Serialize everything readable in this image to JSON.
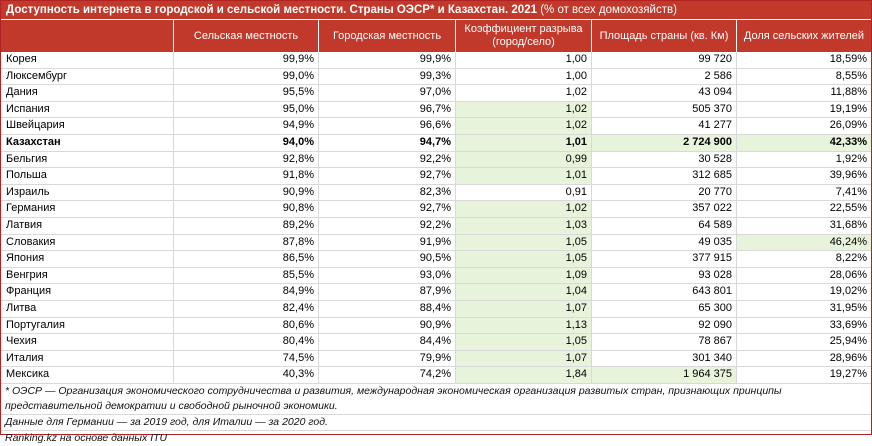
{
  "title_bold": "Доступность интернета в городской и сельской местности. Страны ОЭСР* и Казахстан. 2021",
  "title_rest": " (% от всех домохозяйств)",
  "headers": [
    "",
    "Сельская местность",
    "Городская местность",
    "Коэффициент разрыва (город/село)",
    "Площадь страны (кв. Км)",
    "Доля сельских жителей"
  ],
  "rows": [
    {
      "name": "Корея",
      "rural": "99,9%",
      "urban": "99,9%",
      "ratio": "1,00",
      "area": "99 720",
      "share": "18,59%"
    },
    {
      "name": "Люксембург",
      "rural": "99,0%",
      "urban": "99,3%",
      "ratio": "1,00",
      "area": "2 586",
      "share": "8,55%"
    },
    {
      "name": "Дания",
      "rural": "95,5%",
      "urban": "97,0%",
      "ratio": "1,02",
      "area": "43 094",
      "share": "11,88%"
    },
    {
      "name": "Испания",
      "rural": "95,0%",
      "urban": "96,7%",
      "ratio": "1,02",
      "area": "505 370",
      "share": "19,19%"
    },
    {
      "name": "Швейцария",
      "rural": "94,9%",
      "urban": "96,6%",
      "ratio": "1,02",
      "area": "41 277",
      "share": "26,09%"
    },
    {
      "name": "Казахстан",
      "rural": "94,0%",
      "urban": "94,7%",
      "ratio": "1,01",
      "area": "2 724 900",
      "share": "42,33%"
    },
    {
      "name": "Бельгия",
      "rural": "92,8%",
      "urban": "92,2%",
      "ratio": "0,99",
      "area": "30 528",
      "share": "1,92%"
    },
    {
      "name": "Польша",
      "rural": "91,8%",
      "urban": "92,7%",
      "ratio": "1,01",
      "area": "312 685",
      "share": "39,96%"
    },
    {
      "name": "Израиль",
      "rural": "90,9%",
      "urban": "82,3%",
      "ratio": "0,91",
      "area": "20 770",
      "share": "7,41%"
    },
    {
      "name": "Германия",
      "rural": "90,8%",
      "urban": "92,7%",
      "ratio": "1,02",
      "area": "357 022",
      "share": "22,55%"
    },
    {
      "name": "Латвия",
      "rural": "89,2%",
      "urban": "92,2%",
      "ratio": "1,03",
      "area": "64 589",
      "share": "31,68%"
    },
    {
      "name": "Словакия",
      "rural": "87,8%",
      "urban": "91,9%",
      "ratio": "1,05",
      "area": "49 035",
      "share": "46,24%"
    },
    {
      "name": "Япония",
      "rural": "86,5%",
      "urban": "90,5%",
      "ratio": "1,05",
      "area": "377 915",
      "share": "8,22%"
    },
    {
      "name": "Венгрия",
      "rural": "85,5%",
      "urban": "93,0%",
      "ratio": "1,09",
      "area": "93 028",
      "share": "28,06%"
    },
    {
      "name": "Франция",
      "rural": "84,9%",
      "urban": "87,9%",
      "ratio": "1,04",
      "area": "643 801",
      "share": "19,02%"
    },
    {
      "name": "Литва",
      "rural": "82,4%",
      "urban": "88,4%",
      "ratio": "1,07",
      "area": "65 300",
      "share": "31,95%"
    },
    {
      "name": "Португалия",
      "rural": "80,6%",
      "urban": "90,9%",
      "ratio": "1,13",
      "area": "92 090",
      "share": "33,69%"
    },
    {
      "name": "Чехия",
      "rural": "80,4%",
      "urban": "84,4%",
      "ratio": "1,05",
      "area": "78 867",
      "share": "25,94%"
    },
    {
      "name": "Италия",
      "rural": "74,5%",
      "urban": "79,9%",
      "ratio": "1,07",
      "area": "301 340",
      "share": "28,96%"
    },
    {
      "name": "Мексика",
      "rural": "40,3%",
      "urban": "74,2%",
      "ratio": "1,84",
      "area": "1 964 375",
      "share": "19,27%"
    }
  ],
  "notes": [
    "* ОЭСР — Организация экономического сотрудничества и развития, международная экономическая организация развитых стран, признающих принципы",
    "представительной демократии и свободной рыночной экономики.",
    "Данные для Германии — за 2019 год, для Италии — за 2020 год.",
    "Ranking.kz на основе данных ITU"
  ],
  "colors": {
    "header_bg": "#c0392b",
    "highlight": "#e8f3dc"
  }
}
